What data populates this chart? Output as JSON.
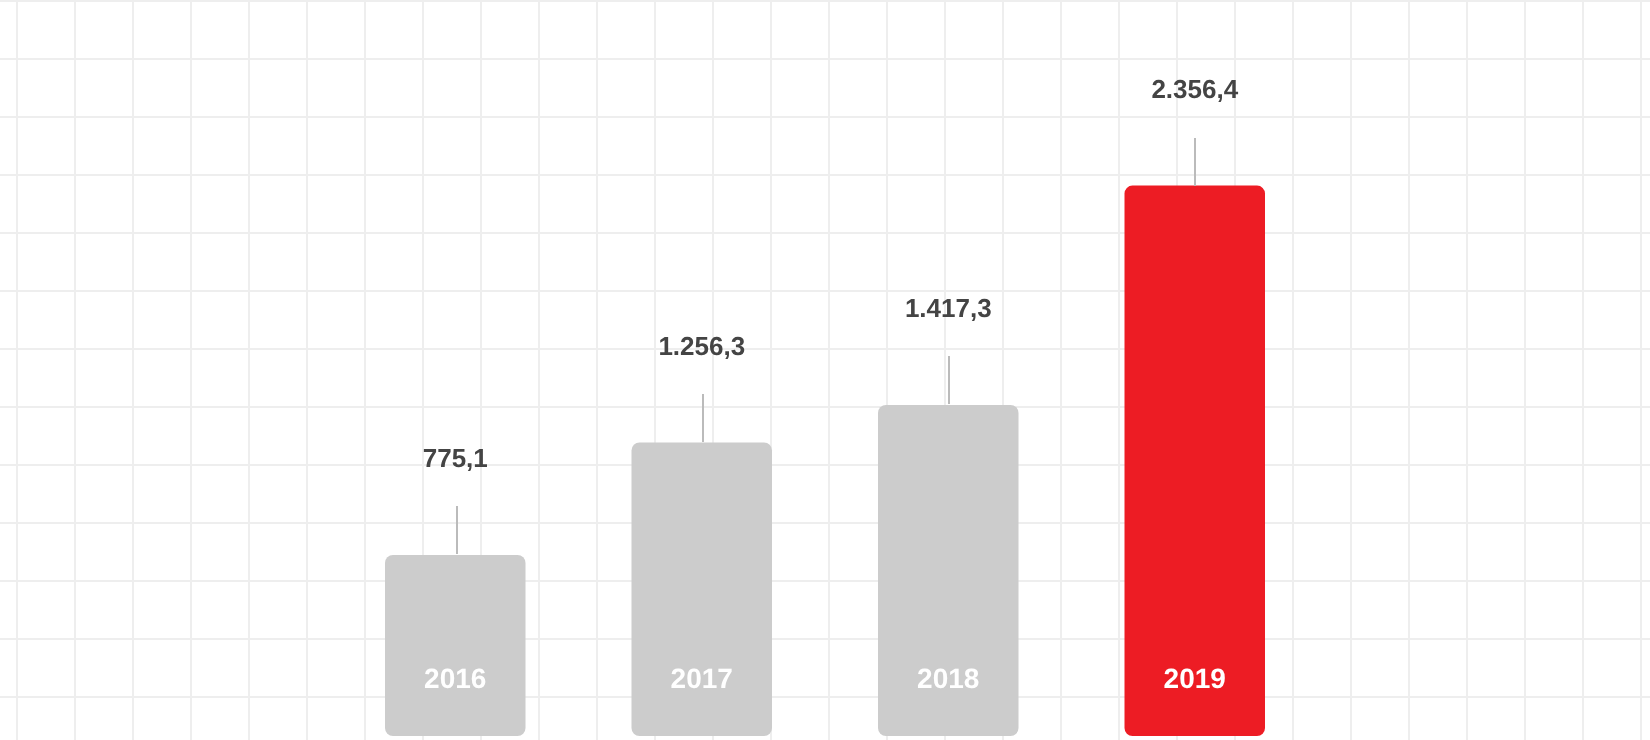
{
  "chart_data": {
    "type": "bar",
    "categories": [
      "2016",
      "2017",
      "2018",
      "2019"
    ],
    "values": [
      775.1,
      1256.3,
      1417.3,
      2356.4
    ],
    "colors": [
      "#cccccc",
      "#cccccc",
      "#cccccc",
      "#ed1c24"
    ],
    "value_labels": [
      "775,1",
      "1.256,3",
      "1.417,3",
      "2.356,4"
    ]
  }
}
